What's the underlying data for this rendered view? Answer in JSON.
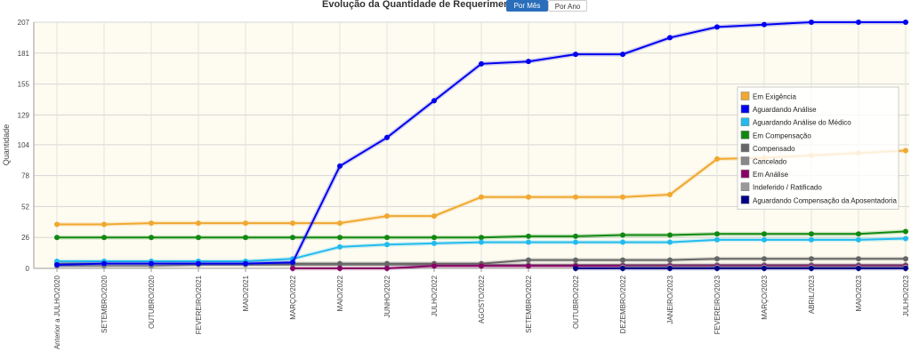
{
  "header": {
    "title": "Evolução da Quantidade de Requerimentos",
    "tab_month": "Por Mês",
    "tab_year": "Por Ano"
  },
  "chart_data": {
    "type": "line",
    "ylabel": "Quantidade",
    "ylim": [
      0,
      207
    ],
    "yticks": [
      0,
      26,
      52,
      78,
      104,
      129,
      155,
      181,
      207
    ],
    "grid": true,
    "legend_position": "right",
    "categories": [
      "Anterior a JULHO/2020",
      "SETEMBRO/2020",
      "OUTUBRO/2020",
      "FEVEREIRO/2021",
      "MAIO/2021",
      "MARÇO/2022",
      "MAIO/2022",
      "JUNHO/2022",
      "JULHO/2022",
      "AGOSTO/2022",
      "SETEMBRO/2022",
      "OUTUBRO/2022",
      "DEZEMBRO/2022",
      "JANEIRO/2023",
      "FEVEREIRO/2023",
      "MARÇO/2023",
      "ABRIL/2023",
      "MAIO/2023",
      "JULHO/2023"
    ],
    "series": [
      {
        "name": "Em Exigência",
        "color": "#f0a830",
        "values": [
          37,
          37,
          38,
          38,
          38,
          38,
          38,
          44,
          44,
          60,
          60,
          60,
          60,
          62,
          92,
          93,
          95,
          97,
          99
        ]
      },
      {
        "name": "Aguardando Análise",
        "color": "#0000ee",
        "values": [
          3,
          4,
          4,
          4,
          4,
          5,
          86,
          110,
          141,
          172,
          174,
          180,
          180,
          194,
          203,
          205,
          207,
          207,
          207
        ]
      },
      {
        "name": "Aguardando Análise do Médico",
        "color": "#22bbee",
        "values": [
          6,
          6,
          6,
          6,
          6,
          8,
          18,
          20,
          21,
          22,
          22,
          22,
          22,
          22,
          24,
          24,
          24,
          24,
          25
        ]
      },
      {
        "name": "Em Compensação",
        "color": "#118811",
        "values": [
          26,
          26,
          26,
          26,
          26,
          26,
          26,
          26,
          26,
          26,
          27,
          27,
          28,
          28,
          29,
          29,
          29,
          29,
          31
        ]
      },
      {
        "name": "Compensado",
        "color": "#666666",
        "values": [
          4,
          4,
          4,
          4,
          4,
          4,
          4,
          4,
          4,
          4,
          7,
          7,
          7,
          7,
          8,
          8,
          8,
          8,
          8
        ]
      },
      {
        "name": "Cancelado",
        "color": "#888888",
        "values": [
          2,
          2,
          2,
          3,
          3,
          3,
          3,
          3,
          3,
          3,
          3,
          3,
          3,
          3,
          3,
          3,
          3,
          3,
          3
        ]
      },
      {
        "name": "Em Análise",
        "color": "#880066",
        "values": [
          null,
          null,
          null,
          null,
          null,
          0,
          0,
          0,
          2,
          2,
          2,
          2,
          2,
          2,
          2,
          2,
          2,
          2,
          2
        ]
      },
      {
        "name": "Indeferido / Ratificado",
        "color": "#999999",
        "values": [
          null,
          null,
          null,
          null,
          null,
          null,
          null,
          null,
          null,
          null,
          null,
          null,
          1,
          1,
          1,
          1,
          1,
          1,
          1
        ]
      },
      {
        "name": "Aguardando Compensação da Aposentadoria",
        "color": "#000088",
        "values": [
          null,
          null,
          null,
          null,
          null,
          null,
          null,
          null,
          null,
          null,
          null,
          0,
          0,
          0,
          0,
          0,
          0,
          0,
          0
        ]
      }
    ]
  }
}
